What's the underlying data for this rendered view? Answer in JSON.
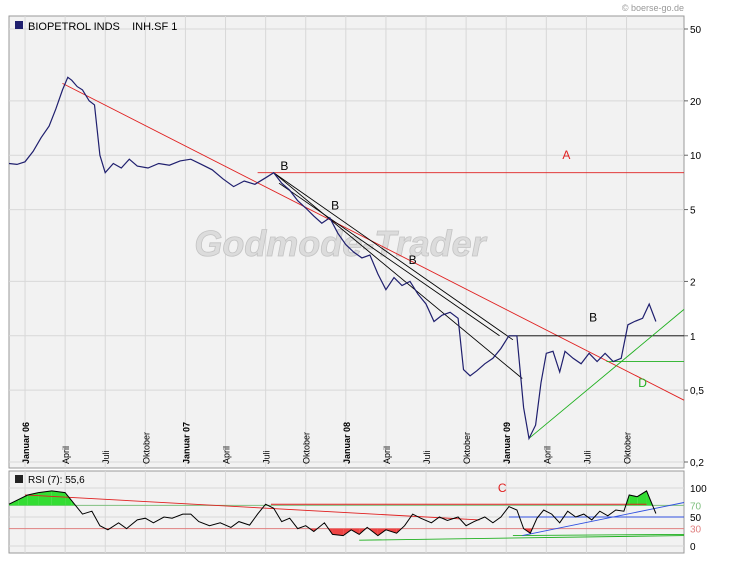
{
  "watermark_source": "© boerse-go.de",
  "watermark_brand": "Godmode-Trader",
  "main_legend": "BIOPETROL INDS    INH.SF 1",
  "rsi_legend": "RSI (7): 55,6",
  "colors": {
    "price": "#1f1f6e",
    "trend_red": "#e02020",
    "trend_black": "#000000",
    "trend_green": "#20b020",
    "trend_blue": "#3050e0",
    "rsi_up_fill": "#33dd33",
    "rsi_down_fill": "#ee4444",
    "grid": "#d8d8d8",
    "panel_bg": "#f2f2f2"
  },
  "chart_data": [
    {
      "type": "line",
      "scale": "log",
      "ylim": [
        0.2,
        50
      ],
      "y_ticks": [
        {
          "value": 0.2,
          "label": "0,2"
        },
        {
          "value": 0.5,
          "label": "0,5"
        },
        {
          "value": 1,
          "label": "1"
        },
        {
          "value": 2,
          "label": "2"
        },
        {
          "value": 5,
          "label": "5"
        },
        {
          "value": 10,
          "label": "10"
        },
        {
          "value": 20,
          "label": "20"
        },
        {
          "value": 50,
          "label": "50"
        }
      ],
      "x_ticks": [
        {
          "label": "Januar 06",
          "month": 0,
          "bold": true
        },
        {
          "label": "April",
          "month": 3,
          "bold": false
        },
        {
          "label": "Juli",
          "month": 6,
          "bold": false
        },
        {
          "label": "Oktober",
          "month": 9,
          "bold": false
        },
        {
          "label": "Januar 07",
          "month": 12,
          "bold": true
        },
        {
          "label": "April",
          "month": 15,
          "bold": false
        },
        {
          "label": "Juli",
          "month": 18,
          "bold": false
        },
        {
          "label": "Oktober",
          "month": 21,
          "bold": false
        },
        {
          "label": "Januar 08",
          "month": 24,
          "bold": true
        },
        {
          "label": "April",
          "month": 27,
          "bold": false
        },
        {
          "label": "Juli",
          "month": 30,
          "bold": false
        },
        {
          "label": "Oktober",
          "month": 33,
          "bold": false
        },
        {
          "label": "Januar 09",
          "month": 36,
          "bold": true
        },
        {
          "label": "April",
          "month": 39,
          "bold": false
        },
        {
          "label": "Juli",
          "month": 42,
          "bold": false
        },
        {
          "label": "Oktober",
          "month": 45,
          "bold": false
        }
      ],
      "xlim_months": [
        -1.2,
        49.3
      ],
      "series": [
        {
          "price": [
            [
              -1.2,
              9.0
            ],
            [
              -0.6,
              8.9
            ],
            [
              0,
              9.2
            ],
            [
              0.6,
              10.5
            ],
            [
              1.2,
              12.5
            ],
            [
              1.8,
              14.5
            ],
            [
              2.3,
              18
            ],
            [
              2.8,
              23
            ],
            [
              3.2,
              27
            ],
            [
              3.5,
              26
            ],
            [
              3.9,
              24
            ],
            [
              4.3,
              23
            ],
            [
              4.8,
              20
            ],
            [
              5.2,
              19
            ],
            [
              5.6,
              10
            ],
            [
              6.0,
              8.0
            ],
            [
              6.6,
              9.0
            ],
            [
              7.2,
              8.5
            ],
            [
              7.8,
              9.5
            ],
            [
              8.4,
              8.7
            ],
            [
              9.2,
              8.5
            ],
            [
              10,
              9.0
            ],
            [
              10.8,
              8.8
            ],
            [
              11.6,
              9.3
            ],
            [
              12.4,
              9.5
            ],
            [
              13.2,
              8.9
            ],
            [
              14,
              8.3
            ],
            [
              14.8,
              7.4
            ],
            [
              15.6,
              6.7
            ],
            [
              16.4,
              7.2
            ],
            [
              17.2,
              6.9
            ],
            [
              18,
              7.5
            ],
            [
              18.6,
              8.0
            ],
            [
              19.2,
              7.0
            ],
            [
              19.8,
              6.4
            ],
            [
              20.4,
              5.6
            ],
            [
              21,
              5.1
            ],
            [
              21.6,
              4.6
            ],
            [
              22.2,
              4.2
            ],
            [
              22.8,
              4.5
            ],
            [
              23.4,
              3.7
            ],
            [
              24,
              3.2
            ],
            [
              24.6,
              2.9
            ],
            [
              25.2,
              2.7
            ],
            [
              25.8,
              2.8
            ],
            [
              26.4,
              2.2
            ],
            [
              27,
              1.8
            ],
            [
              27.6,
              2.1
            ],
            [
              28.2,
              1.9
            ],
            [
              28.8,
              2.0
            ],
            [
              29.4,
              1.7
            ],
            [
              30,
              1.5
            ],
            [
              30.6,
              1.2
            ],
            [
              31.2,
              1.3
            ],
            [
              31.8,
              1.35
            ],
            [
              32.4,
              1.25
            ],
            [
              32.8,
              0.65
            ],
            [
              33.3,
              0.6
            ],
            [
              33.8,
              0.64
            ],
            [
              34.4,
              0.7
            ],
            [
              35,
              0.75
            ],
            [
              35.6,
              0.85
            ],
            [
              36.2,
              1.0
            ],
            [
              36.8,
              1.0
            ],
            [
              37.3,
              0.4
            ],
            [
              37.7,
              0.27
            ],
            [
              38.2,
              0.32
            ],
            [
              38.6,
              0.55
            ],
            [
              39,
              0.8
            ],
            [
              39.5,
              0.82
            ],
            [
              40,
              0.63
            ],
            [
              40.4,
              0.82
            ],
            [
              41,
              0.75
            ],
            [
              41.6,
              0.7
            ],
            [
              42.2,
              0.8
            ],
            [
              42.8,
              0.72
            ],
            [
              43.4,
              0.8
            ],
            [
              44,
              0.72
            ],
            [
              44.6,
              0.75
            ],
            [
              45.1,
              1.15
            ],
            [
              45.6,
              1.2
            ],
            [
              46.2,
              1.25
            ],
            [
              46.7,
              1.5
            ],
            [
              47.2,
              1.2
            ]
          ]
        }
      ],
      "trendlines": [
        {
          "color_key": "trend_red",
          "from": [
            2.8,
            25
          ],
          "to": [
            49.3,
            0.44
          ]
        },
        {
          "color_key": "trend_red",
          "from": [
            17.4,
            8.0
          ],
          "to": [
            49.3,
            8.0
          ]
        },
        {
          "color_key": "trend_black",
          "from": [
            18.6,
            8.0
          ],
          "to": [
            37.2,
            0.58
          ]
        },
        {
          "color_key": "trend_black",
          "from": [
            18.6,
            8.0
          ],
          "to": [
            36.5,
            0.95
          ]
        },
        {
          "color_key": "trend_black",
          "from": [
            19.0,
            7.0
          ],
          "to": [
            35.5,
            1.0
          ]
        },
        {
          "color_key": "trend_black",
          "from": [
            36.2,
            1.0
          ],
          "to": [
            49.3,
            1.0
          ]
        },
        {
          "color_key": "trend_green",
          "from": [
            37.7,
            0.27
          ],
          "to": [
            49.3,
            1.4
          ]
        },
        {
          "color_key": "trend_green",
          "from": [
            43.5,
            0.72
          ],
          "to": [
            49.3,
            0.72
          ]
        }
      ],
      "annotations": [
        {
          "text": "A",
          "month": 40.5,
          "value": 9.5,
          "color_key": "trend_red"
        },
        {
          "text": "B",
          "month": 19.4,
          "value": 8.3,
          "color_key": "trend_black"
        },
        {
          "text": "B",
          "month": 23.2,
          "value": 5.0,
          "color_key": "trend_black"
        },
        {
          "text": "B",
          "month": 29.0,
          "value": 2.5,
          "color_key": "trend_black"
        },
        {
          "text": "B",
          "month": 42.5,
          "value": 1.2,
          "color_key": "trend_black"
        },
        {
          "text": "D",
          "month": 46.2,
          "value": 0.52,
          "color_key": "trend_green"
        }
      ]
    },
    {
      "type": "line",
      "ylim": [
        0,
        100
      ],
      "y_ticks": [
        {
          "value": 0,
          "label": "0"
        },
        {
          "value": 30,
          "label": "30"
        },
        {
          "value": 50,
          "label": "50"
        },
        {
          "value": 70,
          "label": "70"
        },
        {
          "value": 100,
          "label": "100"
        }
      ],
      "levels": [
        30,
        70
      ],
      "series": [
        {
          "rsi": [
            [
              -1.2,
              72
            ],
            [
              -0.5,
              80
            ],
            [
              0.2,
              88
            ],
            [
              1,
              92
            ],
            [
              2,
              95
            ],
            [
              3,
              92
            ],
            [
              3.5,
              78
            ],
            [
              4.3,
              55
            ],
            [
              5,
              60
            ],
            [
              5.6,
              35
            ],
            [
              6.2,
              28
            ],
            [
              7,
              40
            ],
            [
              7.6,
              30
            ],
            [
              8.4,
              45
            ],
            [
              9,
              48
            ],
            [
              9.6,
              40
            ],
            [
              10.4,
              50
            ],
            [
              11,
              48
            ],
            [
              11.8,
              55
            ],
            [
              12.4,
              55
            ],
            [
              13,
              42
            ],
            [
              13.8,
              35
            ],
            [
              14.6,
              40
            ],
            [
              15.4,
              32
            ],
            [
              16,
              42
            ],
            [
              16.8,
              36
            ],
            [
              17.4,
              55
            ],
            [
              18,
              72
            ],
            [
              18.6,
              65
            ],
            [
              19.2,
              42
            ],
            [
              19.8,
              48
            ],
            [
              20.4,
              30
            ],
            [
              21,
              35
            ],
            [
              21.6,
              25
            ],
            [
              22.4,
              40
            ],
            [
              23,
              20
            ],
            [
              23.8,
              18
            ],
            [
              24.4,
              28
            ],
            [
              25,
              20
            ],
            [
              25.6,
              32
            ],
            [
              26.4,
              18
            ],
            [
              27,
              28
            ],
            [
              27.8,
              22
            ],
            [
              28.4,
              35
            ],
            [
              29,
              55
            ],
            [
              29.6,
              48
            ],
            [
              30.4,
              40
            ],
            [
              31,
              50
            ],
            [
              31.6,
              44
            ],
            [
              32.4,
              50
            ],
            [
              33,
              35
            ],
            [
              33.6,
              42
            ],
            [
              34.4,
              50
            ],
            [
              35,
              40
            ],
            [
              35.6,
              50
            ],
            [
              36.2,
              68
            ],
            [
              36.8,
              62
            ],
            [
              37.3,
              30
            ],
            [
              37.8,
              22
            ],
            [
              38.3,
              48
            ],
            [
              38.8,
              62
            ],
            [
              39.4,
              55
            ],
            [
              40,
              40
            ],
            [
              40.6,
              60
            ],
            [
              41.2,
              50
            ],
            [
              41.8,
              55
            ],
            [
              42.4,
              45
            ],
            [
              43,
              60
            ],
            [
              43.6,
              52
            ],
            [
              44.2,
              62
            ],
            [
              44.8,
              60
            ],
            [
              45.2,
              88
            ],
            [
              45.8,
              85
            ],
            [
              46.5,
              95
            ],
            [
              47.2,
              56
            ]
          ]
        }
      ],
      "annotations": [
        {
          "text": "C",
          "month": 35.7,
          "value": 90,
          "color_key": "trend_red"
        }
      ],
      "trendlines": [
        {
          "color_key": "trend_red",
          "from": [
            0,
            88
          ],
          "to": [
            34,
            45
          ]
        },
        {
          "color_key": "trend_red",
          "from": [
            18.4,
            72
          ],
          "to": [
            46.5,
            72
          ]
        },
        {
          "color_key": "trend_green",
          "from": [
            36.5,
            18
          ],
          "to": [
            49.3,
            20
          ]
        },
        {
          "color_key": "trend_green",
          "from": [
            25,
            10
          ],
          "to": [
            49.3,
            18
          ]
        },
        {
          "color_key": "trend_blue",
          "from": [
            37.2,
            18
          ],
          "to": [
            49.3,
            75
          ]
        },
        {
          "color_key": "trend_blue",
          "from": [
            36.2,
            50
          ],
          "to": [
            49.3,
            50
          ]
        }
      ]
    }
  ]
}
